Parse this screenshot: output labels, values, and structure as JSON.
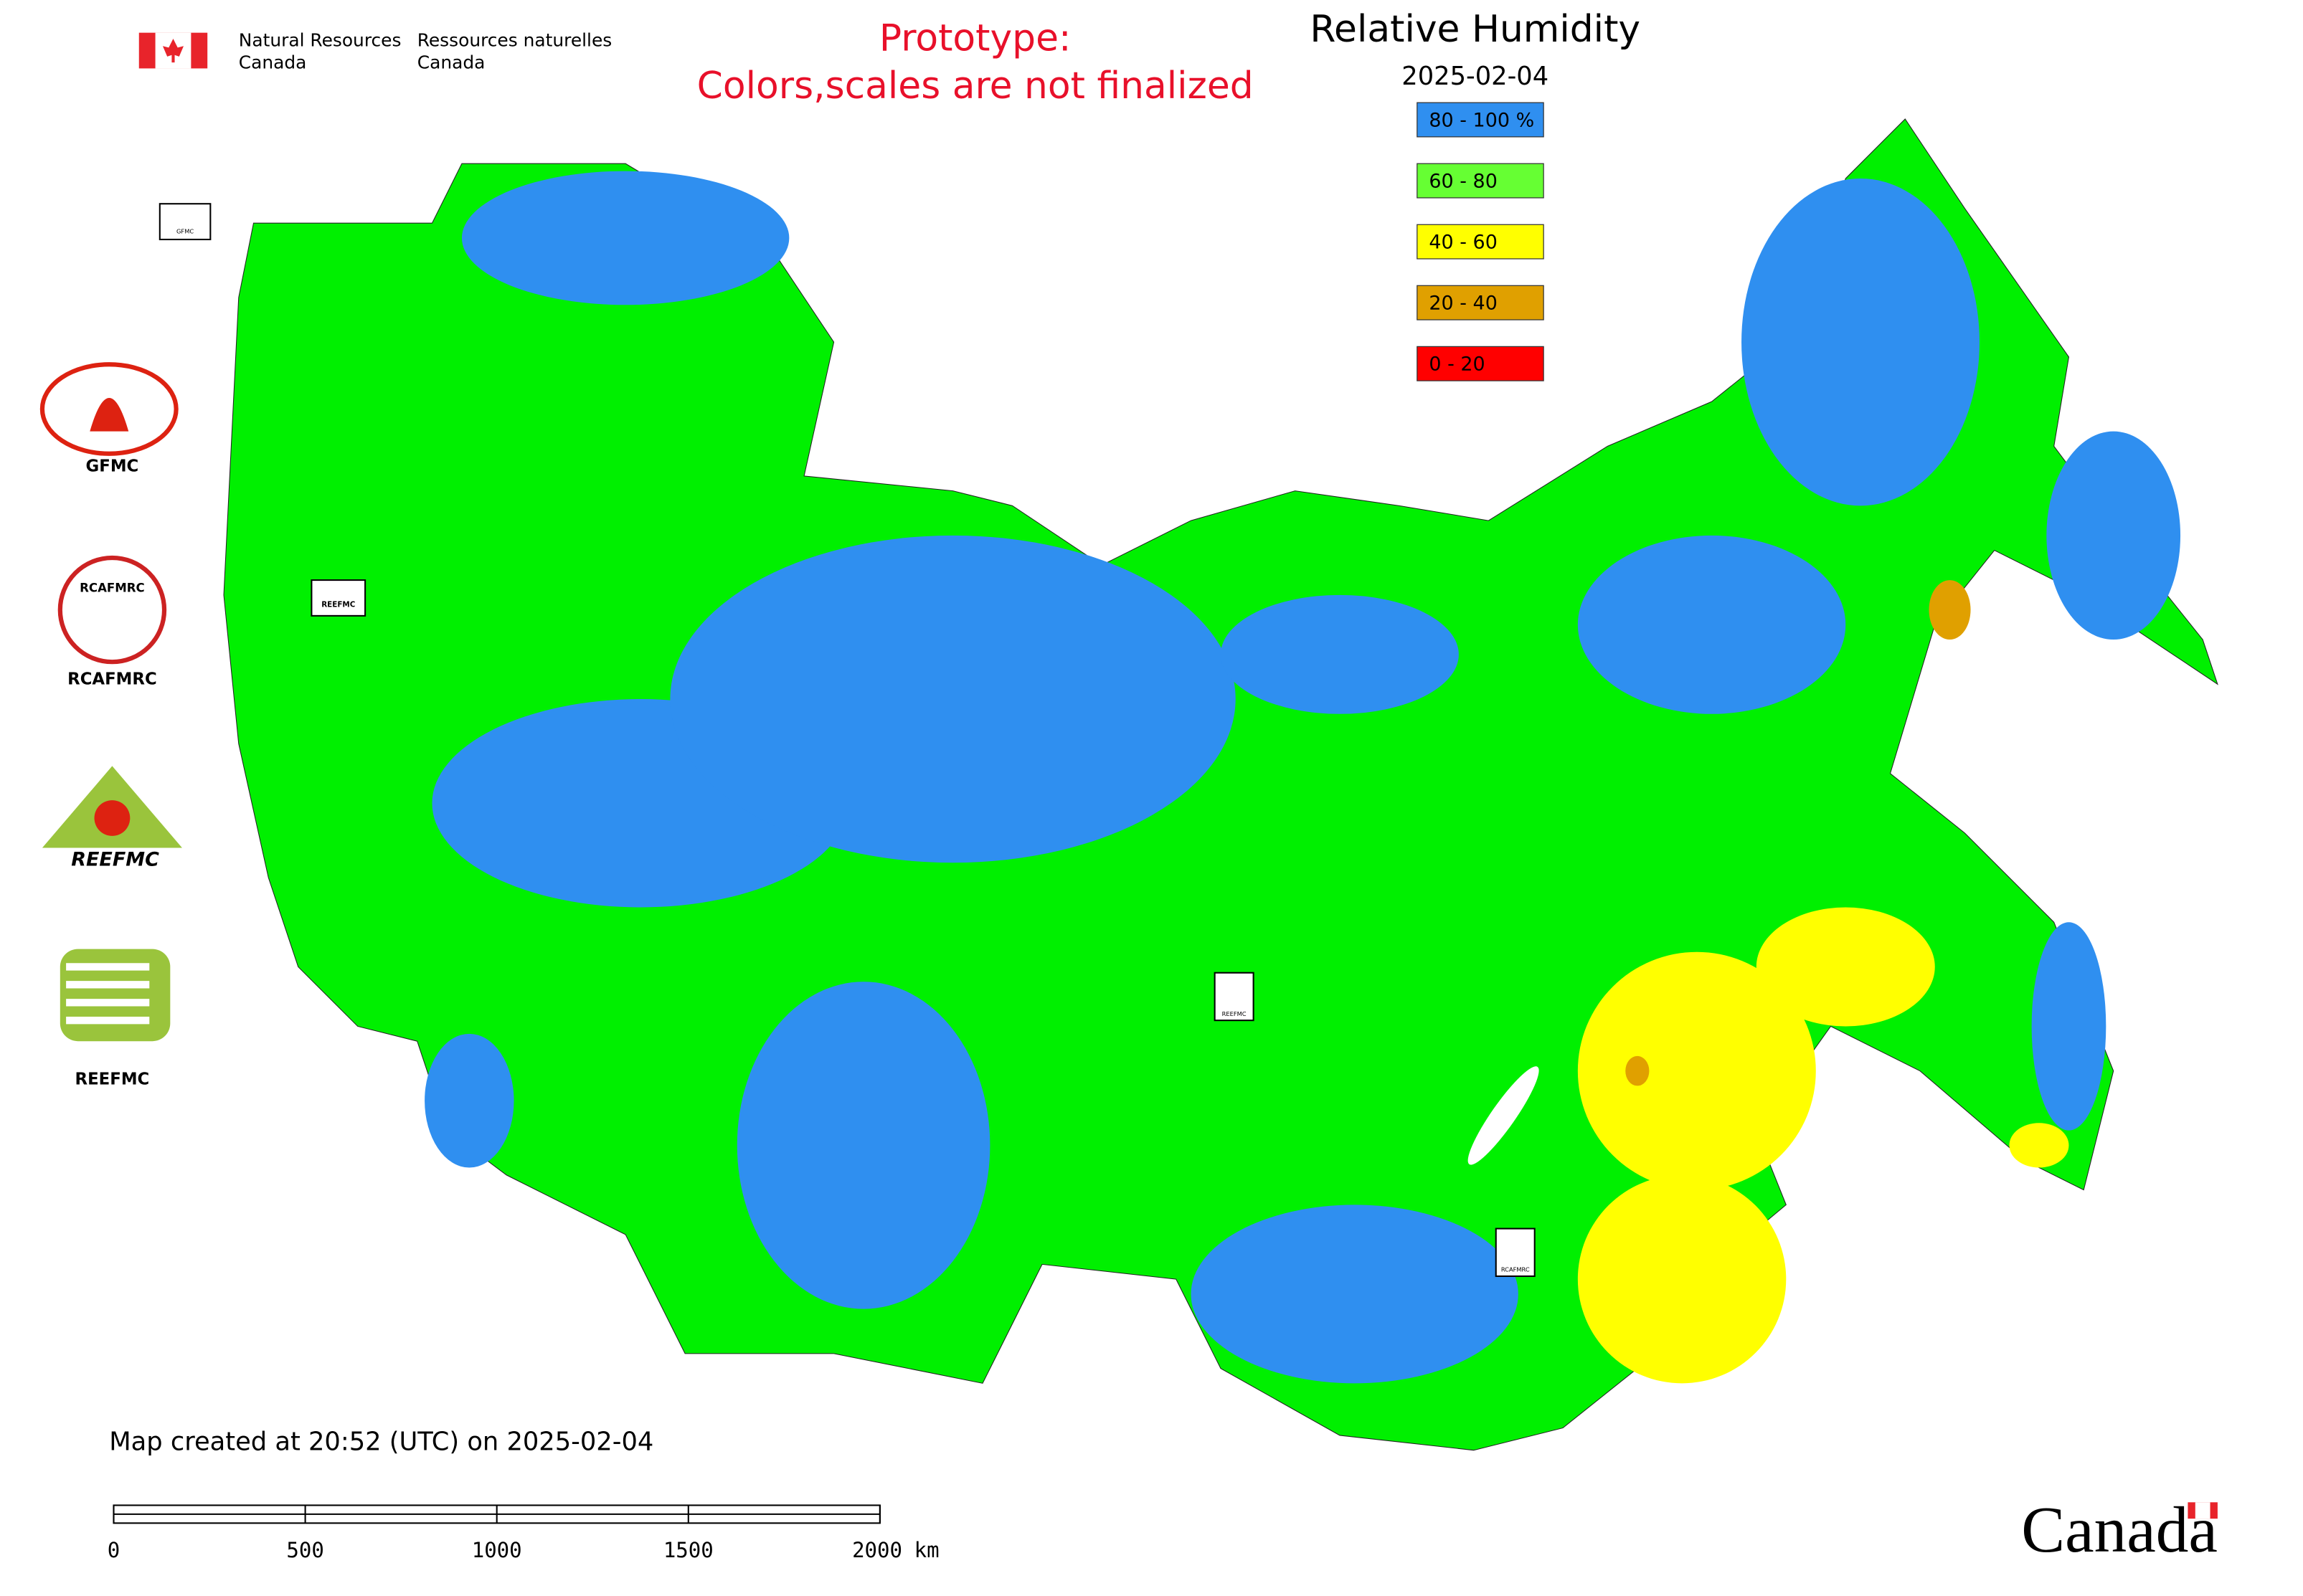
{
  "header": {
    "department_en": [
      "Natural Resources",
      "Canada"
    ],
    "department_fr": [
      "Ressources naturelles",
      "Canada"
    ],
    "notice": [
      "Prototype:",
      "Colors,scales are not finalized"
    ],
    "title": "Relative Humidity",
    "date": "2025-02-04"
  },
  "legend": [
    {
      "label": "80 - 100 %",
      "color": "#2f8ff0"
    },
    {
      "label": "60 - 80",
      "color": "#66ff33"
    },
    {
      "label": "40 - 60",
      "color": "#ffff00"
    },
    {
      "label": "20 - 40",
      "color": "#e0a000"
    },
    {
      "label": "0 - 20",
      "color": "#ff0000"
    }
  ],
  "logos": [
    "GFMC",
    "RCAFMRC",
    "REEFMC"
  ],
  "footer": {
    "created": "Map created at 20:52 (UTC) on 2025-02-04",
    "scale_ticks": [
      0,
      500,
      1000,
      1500,
      2000
    ],
    "scale_unit": "km",
    "wordmark": "Canada"
  }
}
